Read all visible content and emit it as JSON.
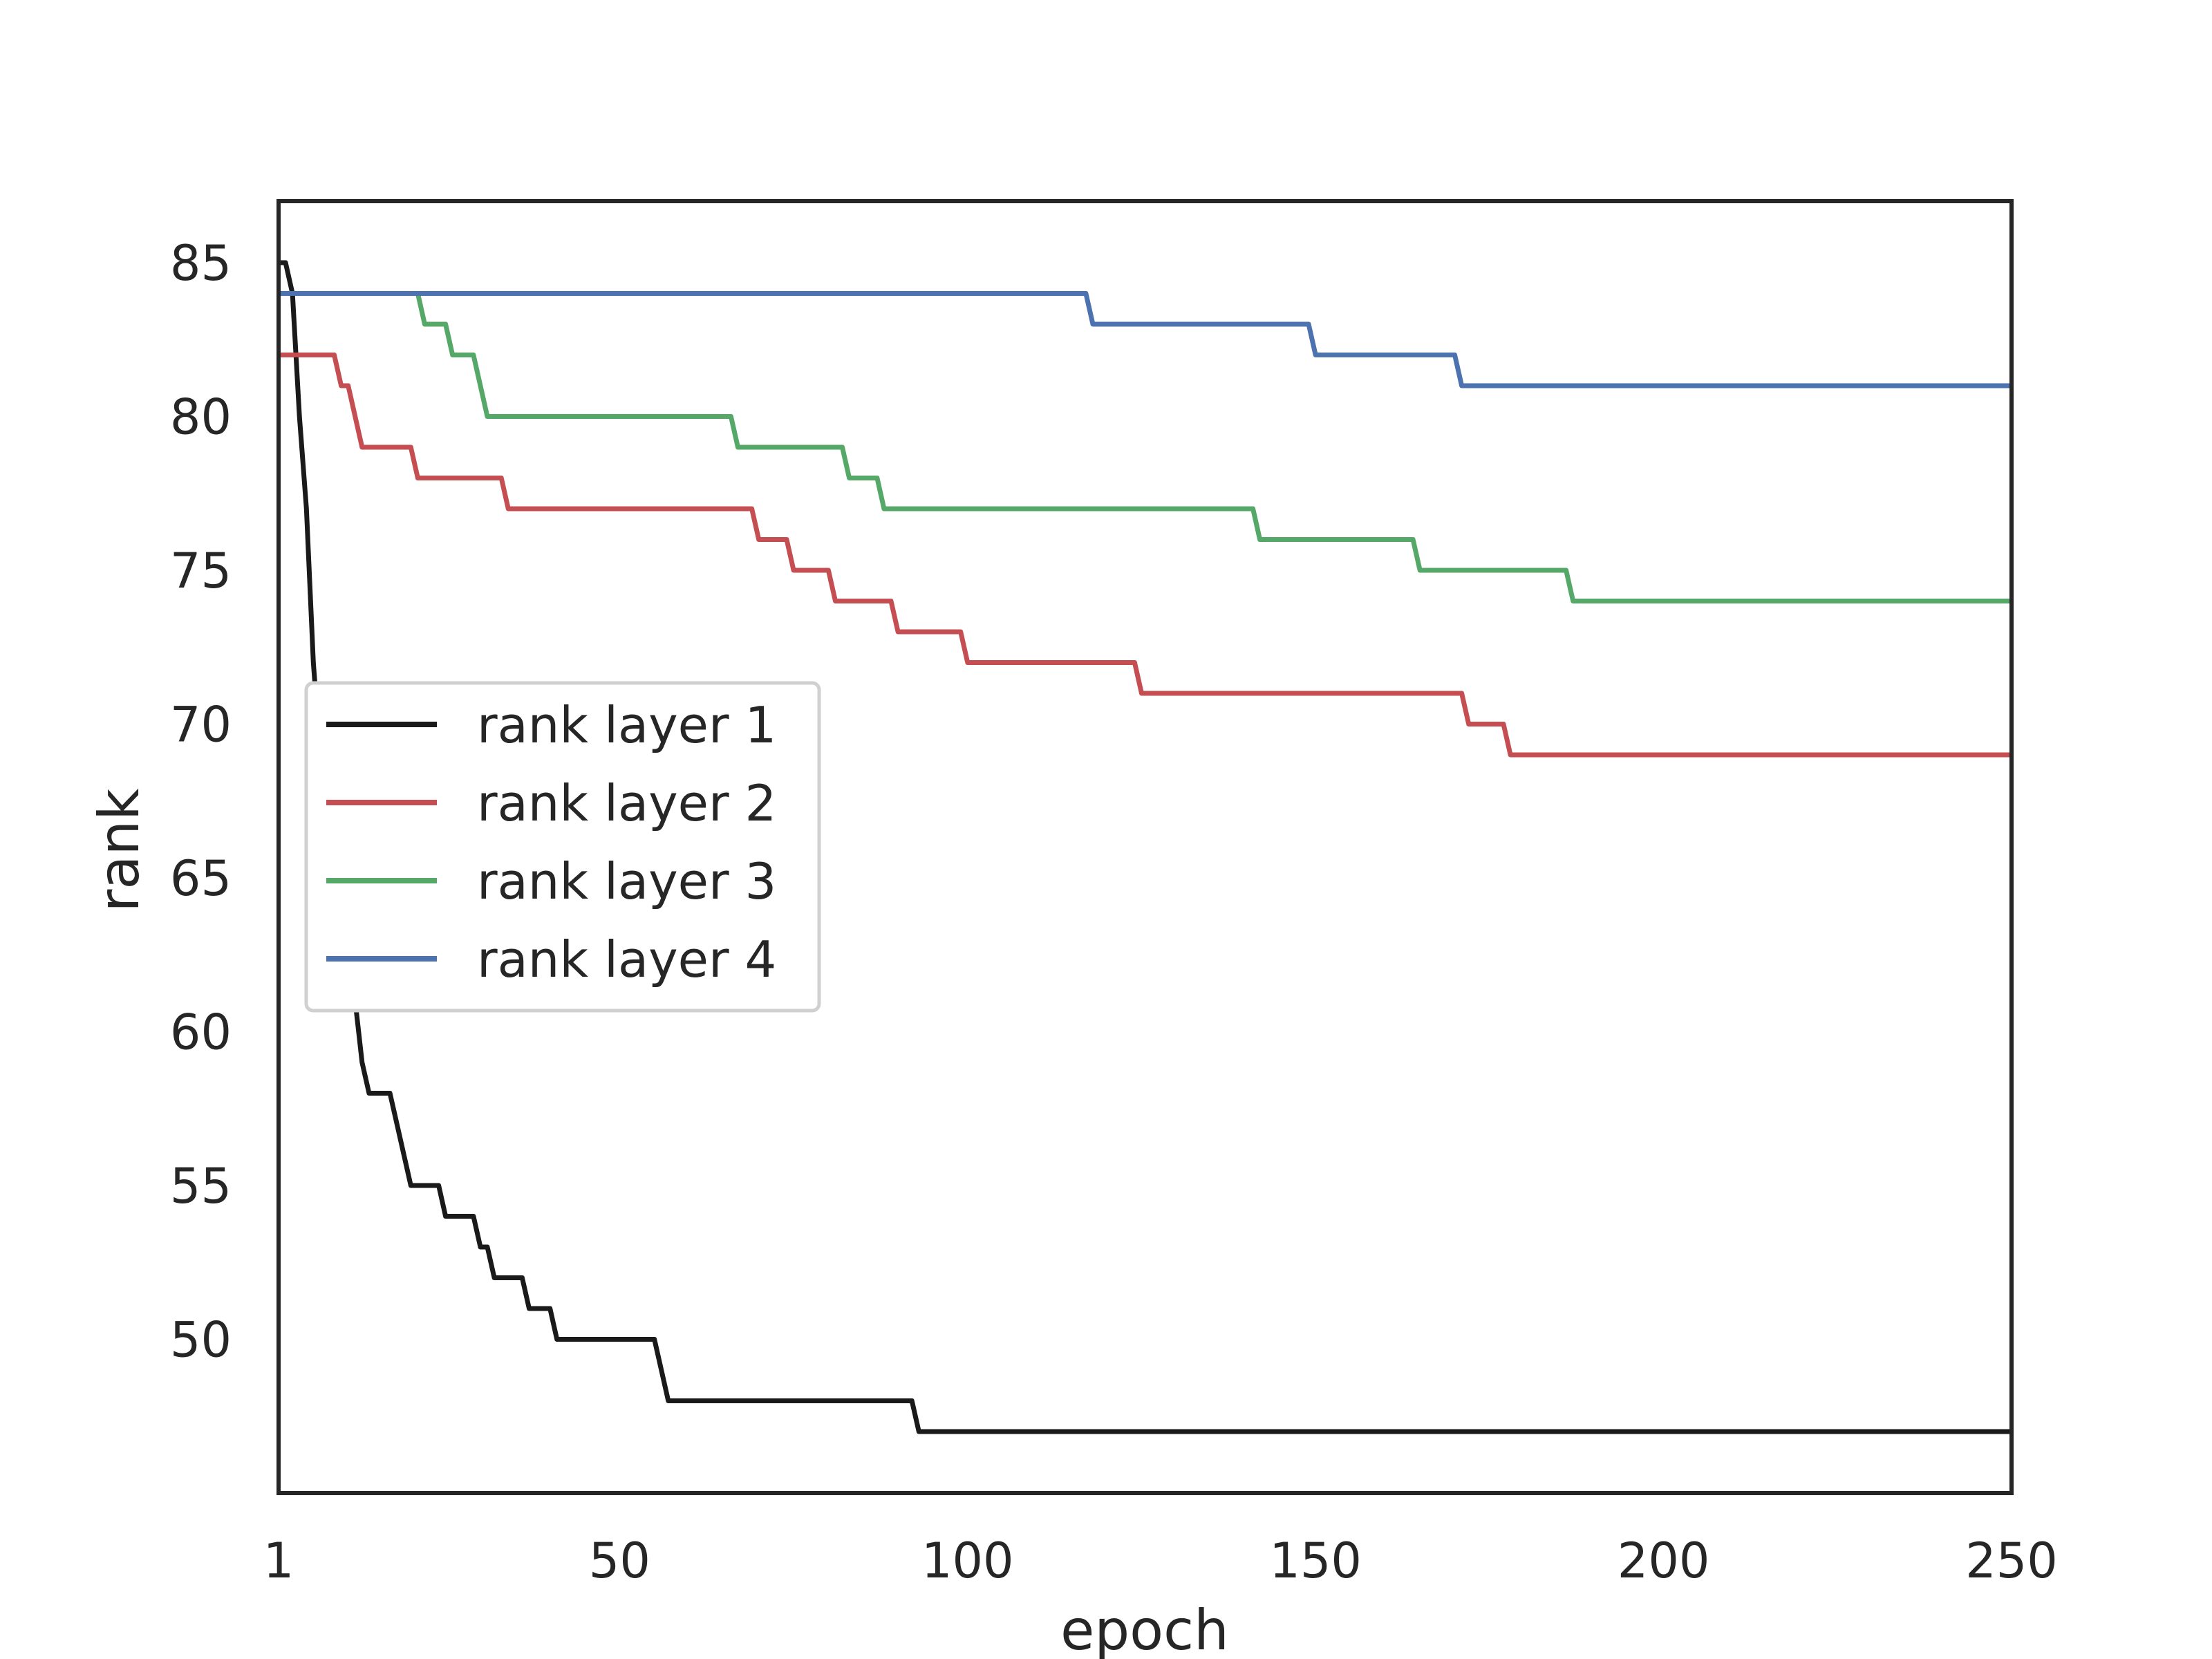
{
  "chart_data": {
    "type": "line",
    "xlabel": "epoch",
    "ylabel": "rank",
    "xlim": [
      1,
      250
    ],
    "ylim": [
      45,
      87
    ],
    "xticks": [
      1,
      50,
      100,
      150,
      200,
      250
    ],
    "yticks": [
      50,
      55,
      60,
      65,
      70,
      75,
      80,
      85
    ],
    "grid": false,
    "legend_position": "center-left",
    "series": [
      {
        "name": "rank layer 1",
        "color": "#1a1a1a",
        "points": [
          [
            1,
            85
          ],
          [
            2,
            85
          ],
          [
            3,
            84
          ],
          [
            4,
            80
          ],
          [
            5,
            77
          ],
          [
            6,
            72
          ],
          [
            7,
            69
          ],
          [
            8,
            68
          ],
          [
            9,
            66
          ],
          [
            10,
            64
          ],
          [
            11,
            63
          ],
          [
            12,
            61
          ],
          [
            13,
            59
          ],
          [
            14,
            58
          ],
          [
            17,
            58
          ],
          [
            18,
            57
          ],
          [
            20,
            55
          ],
          [
            24,
            55
          ],
          [
            25,
            54
          ],
          [
            29,
            54
          ],
          [
            30,
            53
          ],
          [
            31,
            53
          ],
          [
            32,
            52
          ],
          [
            36,
            52
          ],
          [
            37,
            51
          ],
          [
            40,
            51
          ],
          [
            41,
            50
          ],
          [
            55,
            50
          ],
          [
            57,
            48
          ],
          [
            92,
            48
          ],
          [
            93,
            47
          ],
          [
            250,
            47
          ]
        ]
      },
      {
        "name": "rank layer 2",
        "color": "#c44e52",
        "points": [
          [
            1,
            82
          ],
          [
            9,
            82
          ],
          [
            10,
            81
          ],
          [
            11,
            81
          ],
          [
            13,
            79
          ],
          [
            20,
            79
          ],
          [
            21,
            78
          ],
          [
            33,
            78
          ],
          [
            34,
            77
          ],
          [
            69,
            77
          ],
          [
            70,
            76
          ],
          [
            74,
            76
          ],
          [
            75,
            75
          ],
          [
            80,
            75
          ],
          [
            81,
            74
          ],
          [
            89,
            74
          ],
          [
            90,
            73
          ],
          [
            99,
            73
          ],
          [
            100,
            72
          ],
          [
            124,
            72
          ],
          [
            125,
            71
          ],
          [
            171,
            71
          ],
          [
            172,
            70
          ],
          [
            177,
            70
          ],
          [
            178,
            69
          ],
          [
            250,
            69
          ]
        ]
      },
      {
        "name": "rank layer 3",
        "color": "#55a868",
        "points": [
          [
            1,
            84
          ],
          [
            21,
            84
          ],
          [
            22,
            83
          ],
          [
            25,
            83
          ],
          [
            26,
            82
          ],
          [
            29,
            82
          ],
          [
            31,
            80
          ],
          [
            66,
            80
          ],
          [
            67,
            79
          ],
          [
            82,
            79
          ],
          [
            83,
            78
          ],
          [
            87,
            78
          ],
          [
            88,
            77
          ],
          [
            141,
            77
          ],
          [
            142,
            76
          ],
          [
            164,
            76
          ],
          [
            165,
            75
          ],
          [
            186,
            75
          ],
          [
            187,
            74
          ],
          [
            250,
            74
          ]
        ]
      },
      {
        "name": "rank layer 4",
        "color": "#4c72b0",
        "points": [
          [
            1,
            84
          ],
          [
            117,
            84
          ],
          [
            118,
            83
          ],
          [
            149,
            83
          ],
          [
            150,
            82
          ],
          [
            170,
            82
          ],
          [
            171,
            81
          ],
          [
            250,
            81
          ]
        ]
      }
    ]
  }
}
